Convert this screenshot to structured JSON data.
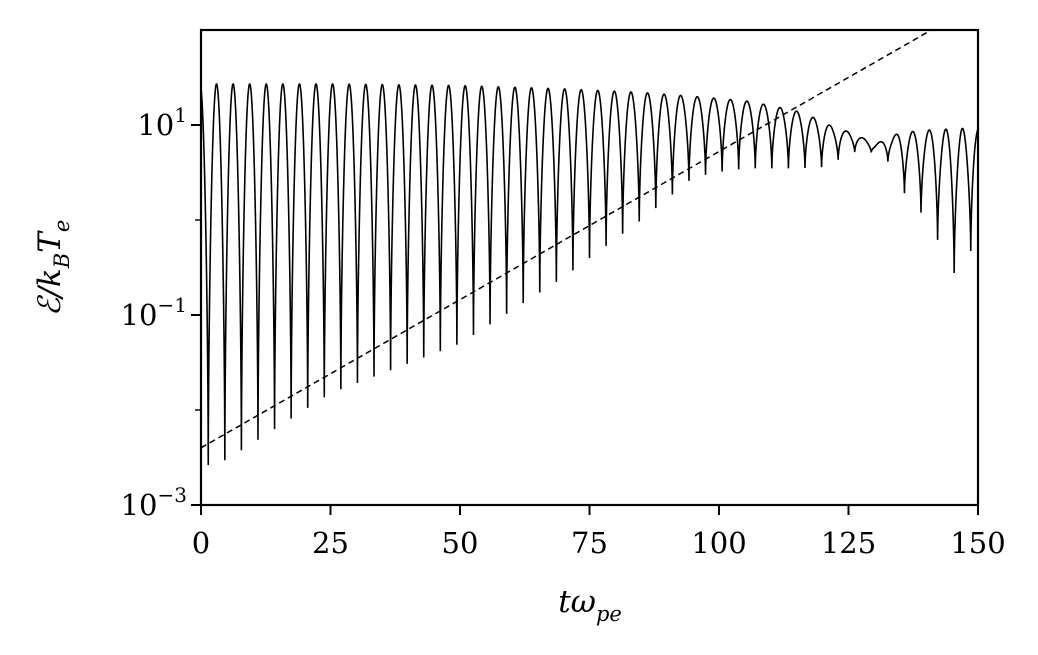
{
  "chart_data": {
    "type": "line",
    "xlabel_parts": {
      "base": "tω",
      "sub": "pe"
    },
    "ylabel_parts": {
      "pre": "ℰ/k",
      "sub1": "B",
      "mid": "T",
      "sub2": "e"
    },
    "xlim": [
      0,
      150
    ],
    "ylim": [
      0.001,
      100
    ],
    "yscale": "log",
    "grid": false,
    "legend": "none",
    "x_ticks": [
      "0",
      "25",
      "50",
      "75",
      "100",
      "125",
      "150"
    ],
    "y_ticks": [
      {
        "base": "10",
        "exp": "−3",
        "value": 0.001
      },
      {
        "base": "10",
        "exp": "−1",
        "value": 0.1
      },
      {
        "base": "10",
        "exp": "1",
        "value": 10
      }
    ],
    "line_color": "#000000",
    "series": [
      {
        "style": "solid",
        "description": "oscillating energy, rectified oscillation with period about 3.2",
        "envelope": {
          "x": [
            0,
            5,
            25,
            50,
            70,
            85,
            95,
            100,
            105,
            110,
            115,
            120,
            122,
            125,
            128,
            130,
            133,
            135,
            138,
            140,
            143,
            145,
            147,
            150
          ],
          "peak": [
            27,
            27,
            27,
            26,
            24,
            22,
            20,
            19,
            18,
            16,
            14,
            11,
            9.5,
            8.5,
            7.2,
            6.2,
            7.5,
            8.3,
            8.6,
            8.8,
            9.0,
            9.1,
            9.2,
            9.3
          ],
          "trough": [
            0.0025,
            0.003,
            0.015,
            0.05,
            0.25,
            1.0,
            2.8,
            3.2,
            3.5,
            3.5,
            3.5,
            3.6,
            4.0,
            5.0,
            5.5,
            5.0,
            4.0,
            2.2,
            1.3,
            1.1,
            0.5,
            0.3,
            0.2,
            1.0
          ]
        }
      },
      {
        "style": "dashed",
        "description": "exponential growth reference line",
        "x": [
          0,
          141
        ],
        "y": [
          0.004,
          100
        ]
      }
    ]
  }
}
